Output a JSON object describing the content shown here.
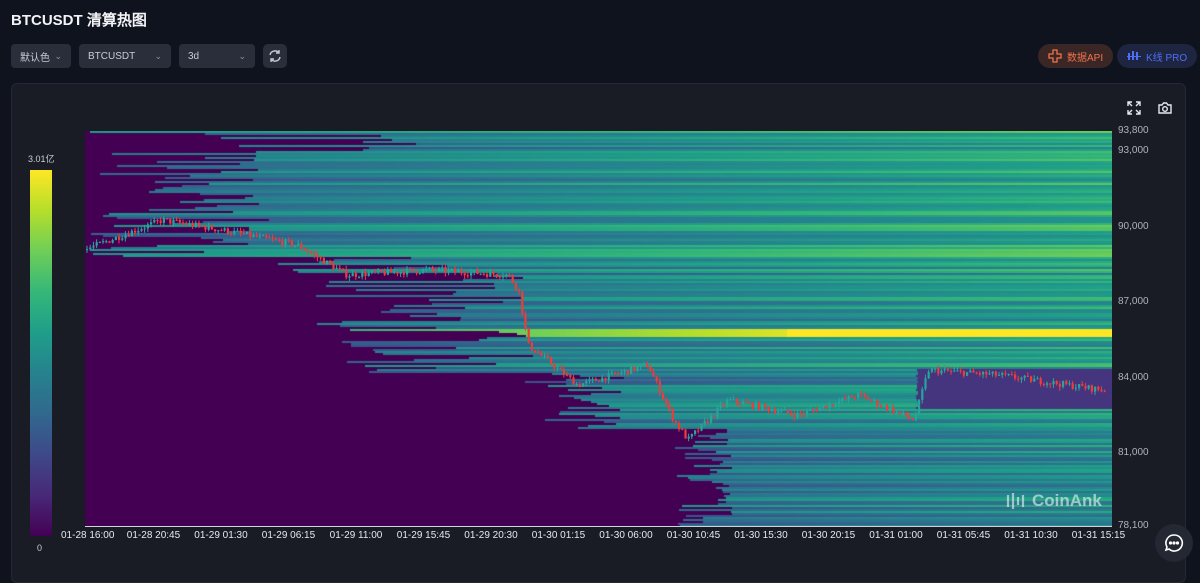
{
  "header": {
    "title": "BTCUSDT 清算热图"
  },
  "toolbar": {
    "color_scheme": "默认色",
    "symbol": "BTCUSDT",
    "range": "3d",
    "data_api": "数据API",
    "kline_pro": "K线 PRO"
  },
  "colors": {
    "accent_api": "#f0734e",
    "accent_kline": "#4f6ef7",
    "up": "#26a69a",
    "down": "#ef3b3b",
    "colormap": "viridis"
  },
  "colorbar": {
    "max_label": "3.01亿",
    "min_label": "0"
  },
  "watermark": "CoinAnk",
  "chart_data": {
    "type": "heatmap",
    "overlay": "candlestick",
    "title": "",
    "y_ticks": [
      "93,800",
      "93,000",
      "90,000",
      "87,000",
      "84,000",
      "81,000",
      "78,100"
    ],
    "ylim": [
      78100,
      93800
    ],
    "x_ticks": [
      "01-28 16:00",
      "01-28 20:45",
      "01-29 01:30",
      "01-29 06:15",
      "01-29 11:00",
      "01-29 15:45",
      "01-29 20:30",
      "01-30 01:15",
      "01-30 06:00",
      "01-30 10:45",
      "01-30 15:30",
      "01-30 20:15",
      "01-31 01:00",
      "01-31 05:45",
      "01-31 10:30",
      "01-31 15:15"
    ],
    "price_path": [
      [
        "01-28 16:00",
        89070
      ],
      [
        "01-28 21:30",
        90260
      ],
      [
        "01-29 01:45",
        89860
      ],
      [
        "01-29 07:00",
        89270
      ],
      [
        "01-29 10:30",
        88080
      ],
      [
        "01-29 16:15",
        88280
      ],
      [
        "01-29 21:50",
        88080
      ],
      [
        "01-29 22:35",
        87480
      ],
      [
        "01-29 23:15",
        85290
      ],
      [
        "01-30 02:45",
        83700
      ],
      [
        "01-30 07:40",
        84500
      ],
      [
        "01-30 09:30",
        82310
      ],
      [
        "01-30 10:30",
        81520
      ],
      [
        "01-30 13:20",
        83110
      ],
      [
        "01-30 18:15",
        82510
      ],
      [
        "01-30 22:30",
        83310
      ],
      [
        "01-31 02:25",
        82310
      ],
      [
        "01-31 03:25",
        84300
      ],
      [
        "01-31 08:20",
        84100
      ],
      [
        "01-31 15:45",
        83500
      ]
    ],
    "peak_liquidation_level": 85800
  }
}
